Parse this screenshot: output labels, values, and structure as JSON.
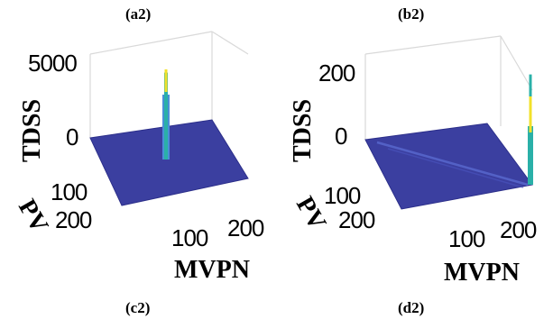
{
  "captions": {
    "top_left": "(a2)",
    "top_right": "(b2)",
    "bottom_left": "(c2)",
    "bottom_right": "(d2)"
  },
  "colors": {
    "surface": "#3b3fa0",
    "surface_edge": "#2c2f8a",
    "spike_yellow": "#f2e12a",
    "spike_teal": "#2ab0a8",
    "spike_blue": "#4a8fd8"
  },
  "chart_data": [
    {
      "type": "surface",
      "panel": "(a2)",
      "zlabel": "TDSS",
      "ylabel": "PV",
      "xlabel": "MVPN",
      "z_ticks": [
        "0",
        "5000"
      ],
      "y_ticks": [
        "100",
        "200"
      ],
      "x_ticks": [
        "100",
        "200"
      ],
      "zlim": [
        0,
        5000
      ],
      "xlim": [
        0,
        200
      ],
      "ylim": [
        0,
        200
      ],
      "surface_level": 0,
      "peaks": [
        {
          "MVPN": 100,
          "PV": 100,
          "TDSS": 4700
        }
      ]
    },
    {
      "type": "surface",
      "panel": "(b2)",
      "zlabel": "TDSS",
      "ylabel": "PV",
      "xlabel": "MVPN",
      "z_ticks": [
        "0",
        "200"
      ],
      "y_ticks": [
        "100",
        "200"
      ],
      "x_ticks": [
        "100",
        "200"
      ],
      "zlim": [
        0,
        250
      ],
      "xlim": [
        0,
        200
      ],
      "ylim": [
        0,
        200
      ],
      "surface_level": 0,
      "peaks": [
        {
          "MVPN": 200,
          "PV": 200,
          "TDSS": 230
        }
      ]
    }
  ]
}
